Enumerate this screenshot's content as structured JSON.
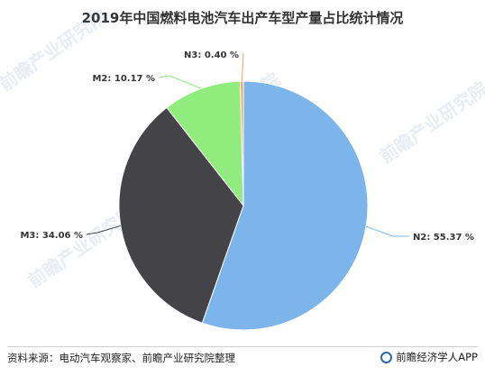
{
  "title": "2019年中国燃料电池汽车出产车型产量占比统计情况",
  "source": "资料来源：电动汽车观察家、前瞻产业研究院整理",
  "brand": "前瞻经济学人APP",
  "watermark": "前瞻产业研究院",
  "chart_data": {
    "type": "pie",
    "title": "2019年中国燃料电池汽车出产车型产量占比统计情况",
    "slices": [
      {
        "name": "N2",
        "value": 55.37,
        "label": "N2: 55.37 %",
        "color": "#7cb5ec"
      },
      {
        "name": "M3",
        "value": 34.06,
        "label": "M3: 34.06 %",
        "color": "#434348"
      },
      {
        "name": "M2",
        "value": 10.17,
        "label": "M2: 10.17 %",
        "color": "#90ed7d"
      },
      {
        "name": "N3",
        "value": 0.4,
        "label": "N3: 0.40 %",
        "color": "#f7a35c"
      }
    ]
  }
}
